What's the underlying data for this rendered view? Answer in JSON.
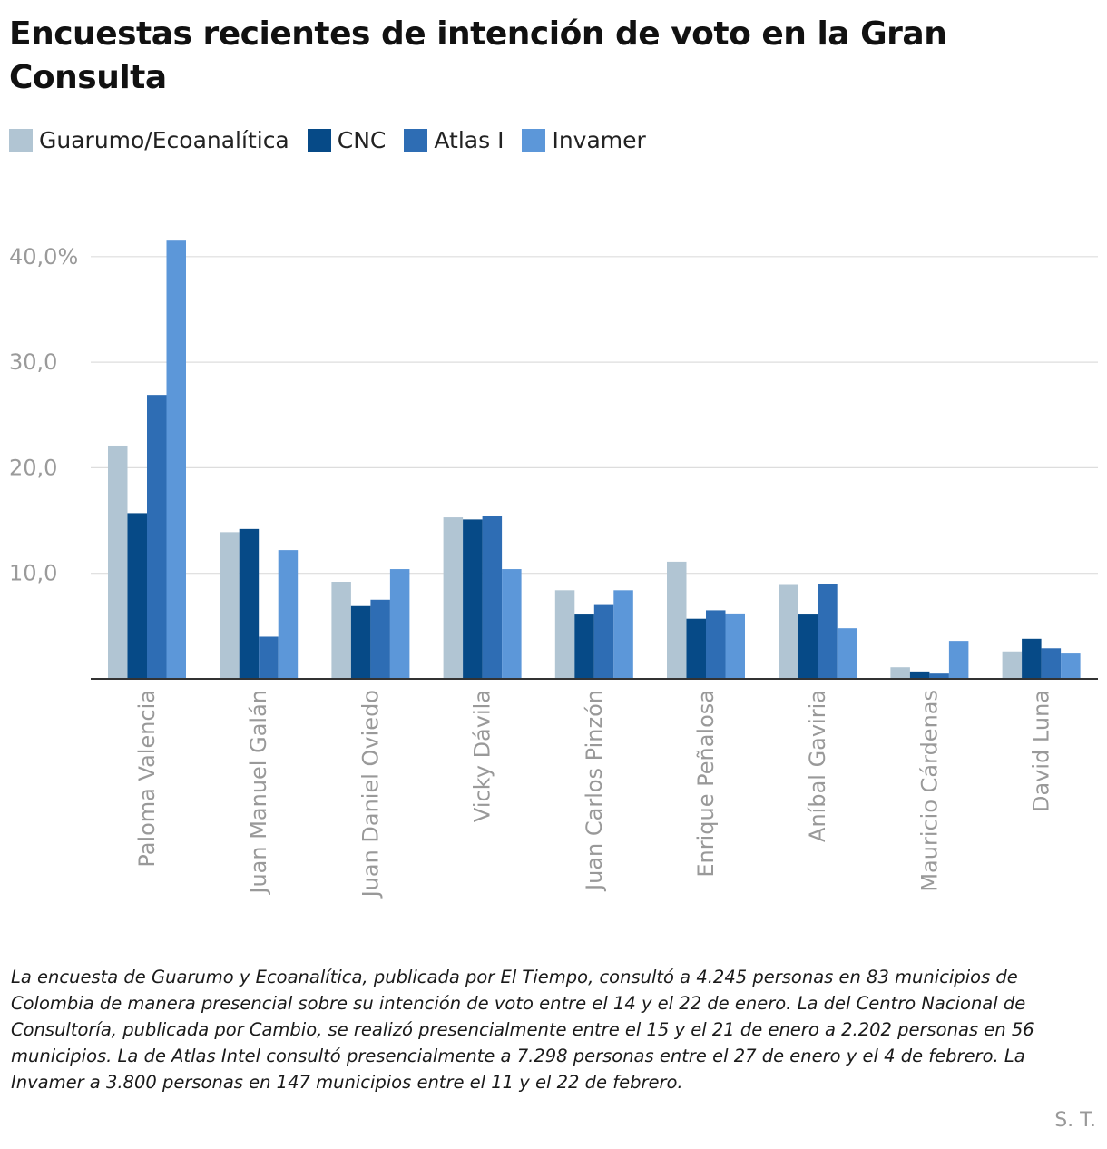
{
  "title": "Encuestas recientes de intención de voto en la Gran Consulta",
  "legend": [
    {
      "label": "Guarumo/Ecoanalítica",
      "color": "#b1c5d3"
    },
    {
      "label": "CNC",
      "color": "#064a87"
    },
    {
      "label": "Atlas I",
      "color": "#2e6db4"
    },
    {
      "label": "Invamer",
      "color": "#5c97d9"
    }
  ],
  "note": "La encuesta de Guarumo y Ecoanalítica, publicada por El Tiempo, consultó a 4.245 personas en 83 municipios de Colombia de manera presencial sobre su intención de voto entre el 14 y el 22 de enero. La del Centro Nacional de Consultoría, publicada por Cambio, se realizó presencialmente entre el 15 y el 21 de enero a 2.202 personas en 56 municipios. La de Atlas Intel consultó presencialmente a 7.298 personas entre el 27 de enero y el 4 de febrero. La Invamer a 3.800 personas en 147 municipios entre el 11 y el 22 de febrero.",
  "credit": "S. T.",
  "chart_data": {
    "type": "bar",
    "title": "Encuestas recientes de intención de voto en la Gran Consulta",
    "categories": [
      "Paloma Valencia",
      "Juan Manuel Galán",
      "Juan Daniel Oviedo",
      "Vicky Dávila",
      "Juan Carlos Pinzón",
      "Enrique Peñalosa",
      "Aníbal Gaviria",
      "Mauricio Cárdenas",
      "David Luna"
    ],
    "series": [
      {
        "name": "Guarumo/Ecoanalítica",
        "color": "#b1c5d3",
        "values": [
          22.1,
          13.9,
          9.2,
          15.3,
          8.4,
          11.1,
          8.9,
          1.1,
          2.6
        ]
      },
      {
        "name": "CNC",
        "color": "#064a87",
        "values": [
          15.7,
          14.2,
          6.9,
          15.1,
          6.1,
          5.7,
          6.1,
          0.7,
          3.8
        ]
      },
      {
        "name": "Atlas I",
        "color": "#2e6db4",
        "values": [
          26.9,
          4.0,
          7.5,
          15.4,
          7.0,
          6.5,
          9.0,
          0.5,
          2.9
        ]
      },
      {
        "name": "Invamer",
        "color": "#5c97d9",
        "values": [
          41.6,
          12.2,
          10.4,
          10.4,
          8.4,
          6.2,
          4.8,
          3.6,
          2.4
        ]
      }
    ],
    "yticks": [
      {
        "value": 10,
        "label": "10,0"
      },
      {
        "value": 20,
        "label": "20,0"
      },
      {
        "value": 30,
        "label": "30,0"
      },
      {
        "value": 40,
        "label": "40,0%"
      }
    ],
    "ylim": [
      0,
      42
    ],
    "grid": true,
    "legend_position": "top-left"
  }
}
